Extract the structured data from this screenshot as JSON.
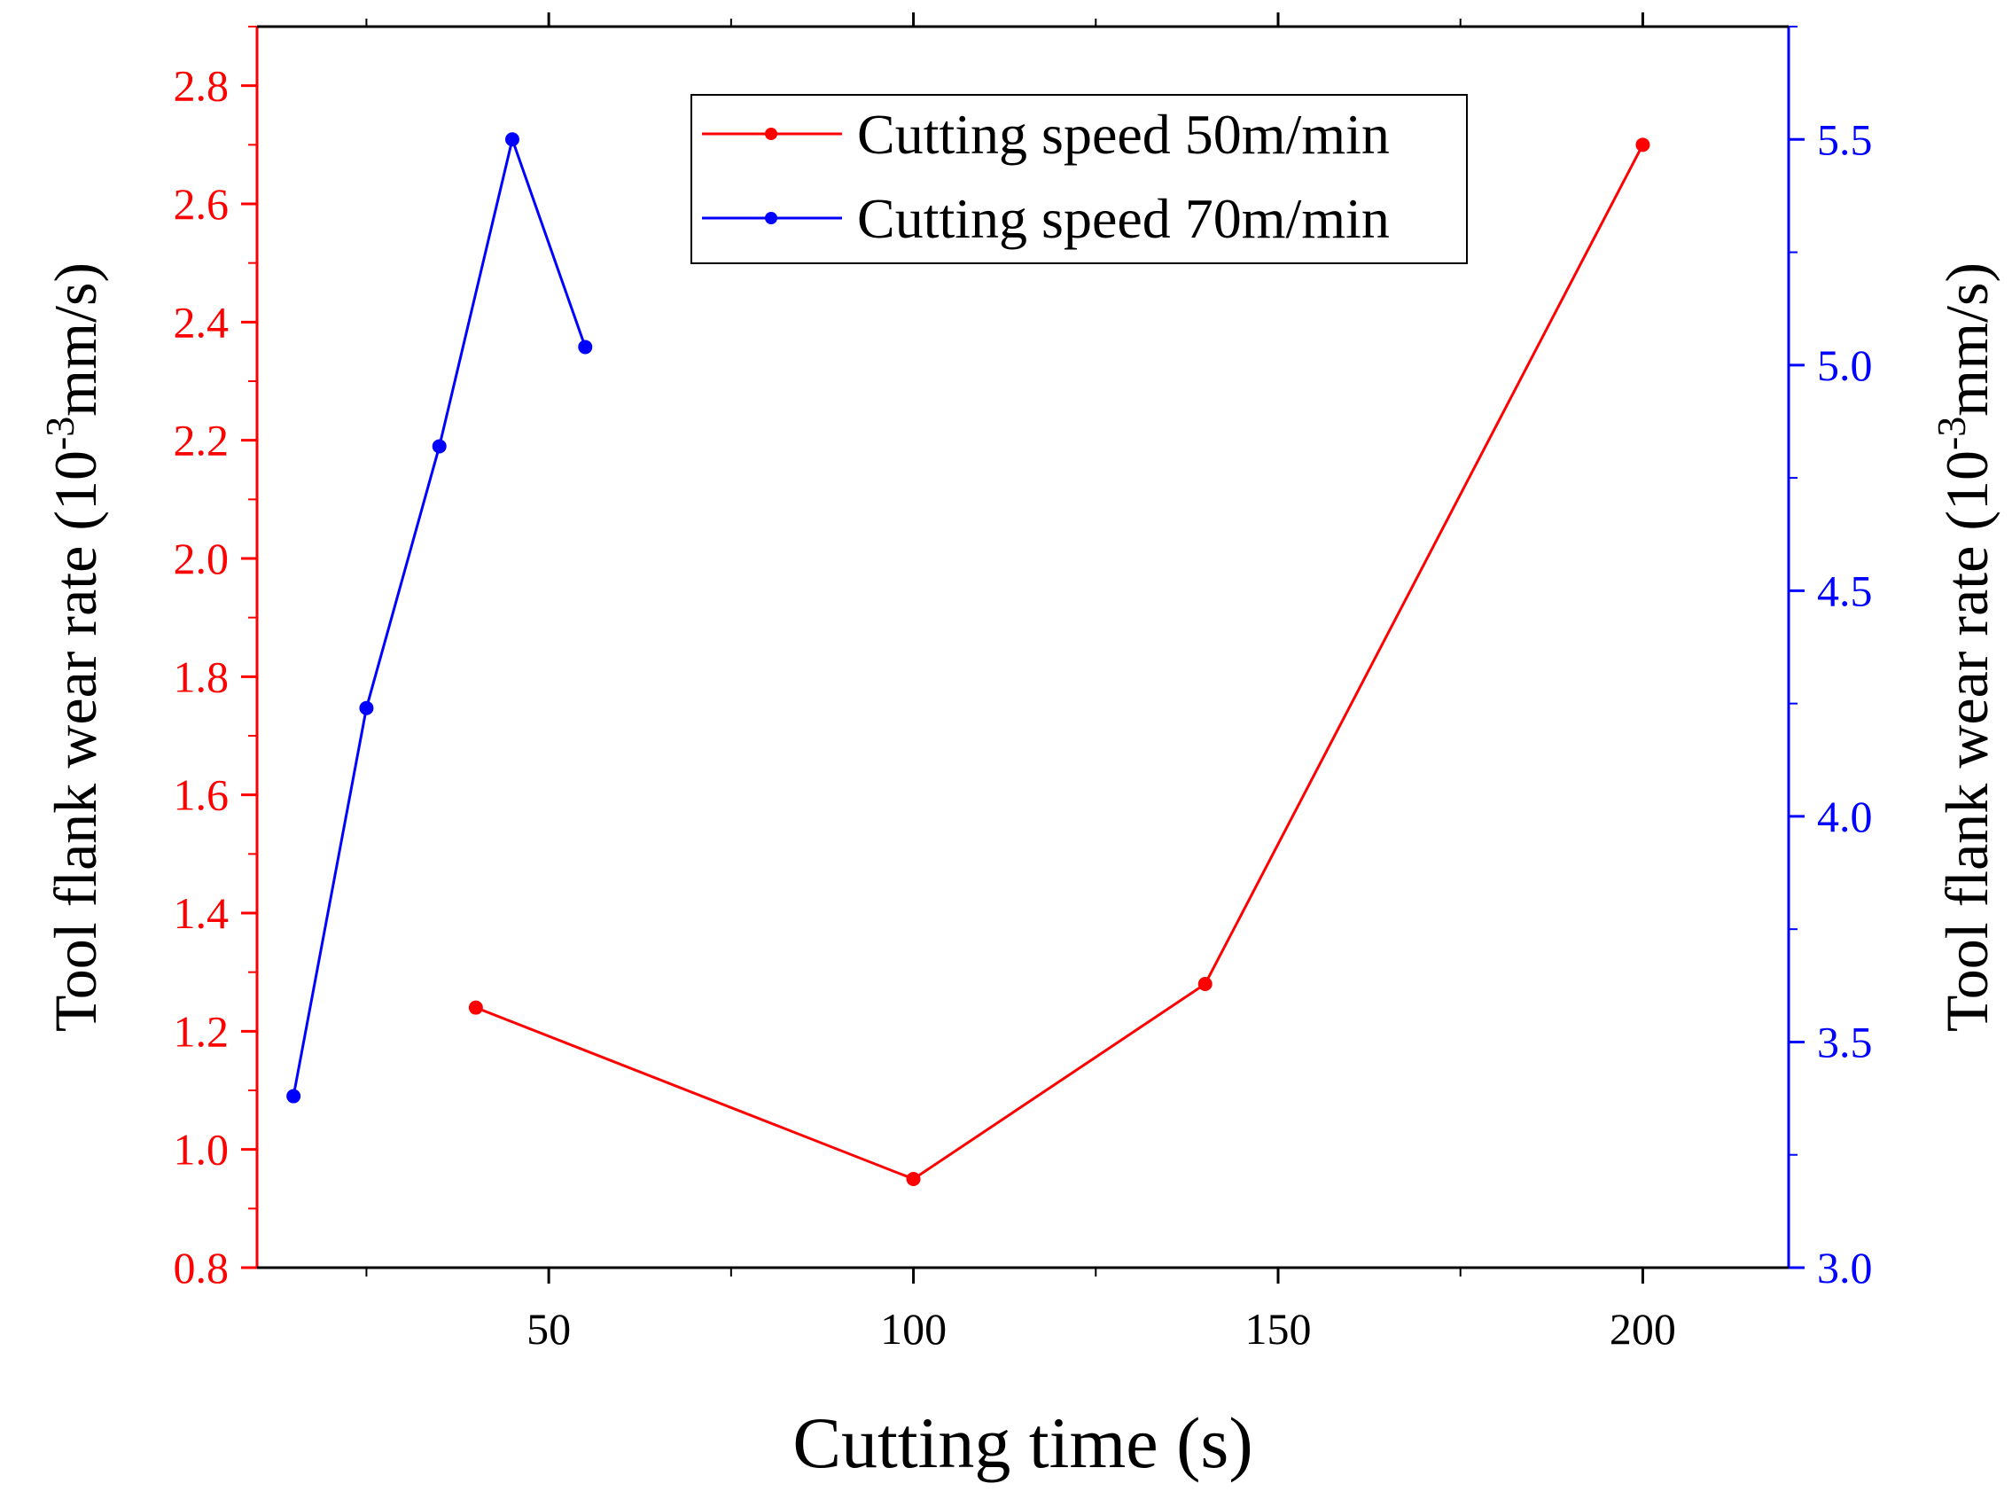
{
  "chart_data": {
    "type": "line",
    "title": "",
    "xlabel": "Cutting time (s)",
    "ylabel_left": {
      "pre": "Tool flank wear rate (10",
      "sup": "-3",
      "post": "mm/s)"
    },
    "ylabel_right": {
      "pre": "Tool flank wear rate (10",
      "sup": "-3",
      "post": "mm/s)"
    },
    "xlim": [
      10,
      220
    ],
    "ylim_left": [
      0.8,
      2.9
    ],
    "ylim_right": [
      3.0,
      5.75
    ],
    "x_ticks": [
      50,
      100,
      150,
      200
    ],
    "x_tick_labels": [
      "50",
      "100",
      "150",
      "200"
    ],
    "y_left_ticks": [
      0.8,
      1.0,
      1.2,
      1.4,
      1.6,
      1.8,
      2.0,
      2.2,
      2.4,
      2.6,
      2.8
    ],
    "y_left_tick_labels": [
      "0.8",
      "1.0",
      "1.2",
      "1.4",
      "1.6",
      "1.8",
      "2.0",
      "2.2",
      "2.4",
      "2.6",
      "2.8"
    ],
    "y_right_ticks": [
      3.0,
      3.5,
      4.0,
      4.5,
      5.0,
      5.5
    ],
    "y_right_tick_labels": [
      "3.0",
      "3.5",
      "4.0",
      "4.5",
      "5.0",
      "5.5"
    ],
    "left_axis_color": "#ff0000",
    "right_axis_color": "#0000ff",
    "grid": false,
    "legend_position": "top-center",
    "series": [
      {
        "name": "Cutting speed 50m/min",
        "axis": "left",
        "color": "#ff0000",
        "x": [
          40,
          100,
          140,
          200
        ],
        "y": [
          1.24,
          0.95,
          1.28,
          2.7
        ]
      },
      {
        "name": "Cutting speed 70m/min",
        "axis": "right",
        "color": "#0000ff",
        "x": [
          15,
          25,
          35,
          45,
          55
        ],
        "y": [
          3.38,
          4.24,
          4.82,
          5.5,
          5.04
        ]
      }
    ]
  }
}
